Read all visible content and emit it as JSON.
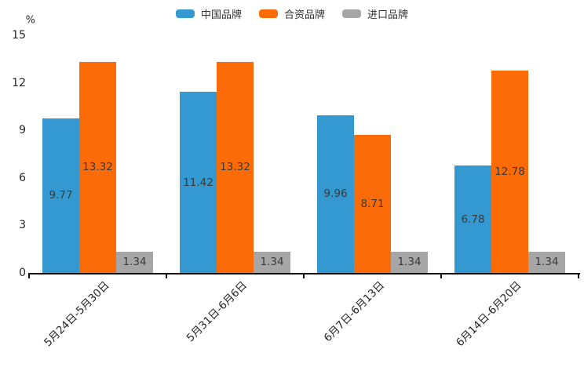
{
  "chart_data": {
    "type": "bar",
    "title": "",
    "ylabel": "%",
    "xlabel": "",
    "ylim": [
      0,
      15
    ],
    "yticks": [
      0,
      3,
      6,
      9,
      12,
      15
    ],
    "grid": false,
    "legend_position": "top",
    "categories": [
      "5月24日-5月30日",
      "5月31日-6月6日",
      "6月7日-6月13日",
      "6月14日-6月20日"
    ],
    "series": [
      {
        "key": "china-brands",
        "name": "中国品牌",
        "color": "#3499D0",
        "values": [
          9.77,
          11.42,
          9.96,
          6.78
        ]
      },
      {
        "key": "joint-venture-brands",
        "name": "合资品牌",
        "color": "#FB6C08",
        "values": [
          13.32,
          13.32,
          8.71,
          12.78
        ]
      },
      {
        "key": "import-brands",
        "name": "进口品牌",
        "color": "#A6A6A6",
        "values": [
          1.34,
          1.34,
          1.34,
          1.34
        ]
      }
    ],
    "value_labels": [
      [
        "9.77",
        "11.42",
        "9.96",
        "6.78"
      ],
      [
        "13.32",
        "13.32",
        "8.71",
        "12.78"
      ],
      [
        "1.34",
        "1.34",
        "1.34",
        "1.34"
      ]
    ],
    "colors": {
      "background": "#ffffff",
      "axis_line": "#111111",
      "tick_text": "#262626",
      "value_label_text": "#3a3a3a"
    }
  }
}
